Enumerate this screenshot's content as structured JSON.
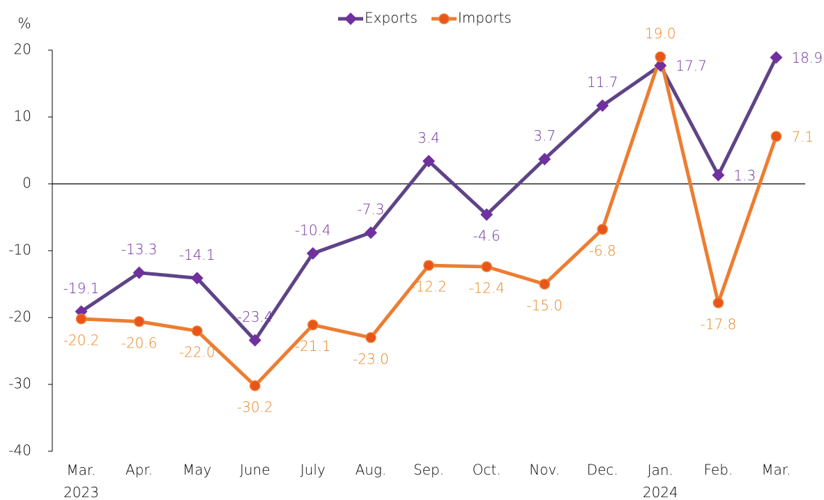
{
  "chart_data": {
    "type": "line",
    "y_label": "%",
    "categories": [
      "Mar.\n2023",
      "Apr.",
      "May",
      "June",
      "July",
      "Aug.",
      "Sep.",
      "Oct.",
      "Nov.",
      "Dec.",
      "Jan.\n2024",
      "Feb.",
      "Mar."
    ],
    "series": [
      {
        "name": "Exports",
        "color": "#5e4487",
        "marker_color": "#7030a0",
        "label_color": "#7030a0",
        "marker": "diamond",
        "values": [
          -19.1,
          -13.3,
          -14.1,
          -23.4,
          -10.4,
          -7.3,
          3.4,
          -4.6,
          3.7,
          11.7,
          17.7,
          1.3,
          18.9
        ],
        "value_labels": [
          "-19.1",
          "-13.3",
          "-14.1",
          "-23.4",
          "-10.4",
          "-7.3",
          "3.4",
          "-4.6",
          "3.7",
          "11.7",
          "17.7",
          "1.3",
          "18.9"
        ]
      },
      {
        "name": "Imports",
        "color": "#ed7d31",
        "marker_color": "#e8541a",
        "label_color": "#e8821e",
        "marker": "circle",
        "values": [
          -20.2,
          -20.6,
          -22.0,
          -30.2,
          -21.1,
          -23.0,
          -12.2,
          -12.4,
          -15.0,
          -6.8,
          19.0,
          -17.8,
          7.1
        ],
        "value_labels": [
          "-20.2",
          "-20.6",
          "-22.0",
          "-30.2",
          "-21.1",
          "-23.0",
          "-12.2",
          "-12.4",
          "-15.0",
          "-6.8",
          "19.0",
          "-17.8",
          "7.1"
        ]
      }
    ],
    "ylim": [
      -40,
      20
    ],
    "yticks": [
      20,
      10,
      0,
      -10,
      -20,
      -30,
      -40
    ],
    "legend": "top",
    "grid": false
  }
}
